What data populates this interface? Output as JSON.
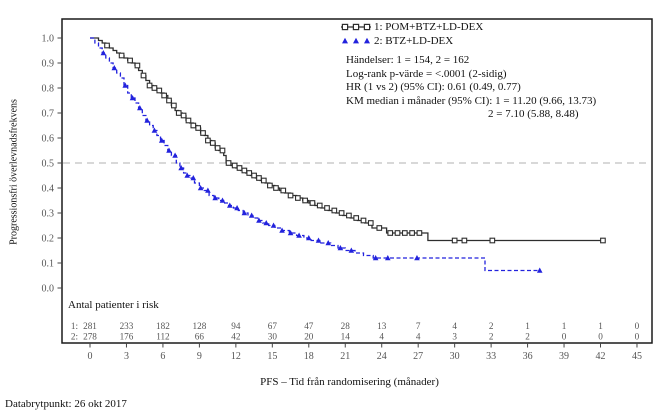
{
  "page": {
    "footer": "Databrytpunkt: 26 okt 2017"
  },
  "legend": {
    "entries": [
      {
        "label": "1: POM+BTZ+LD-DEX",
        "marker": "open-square-icon",
        "color": "#2e2e2e"
      },
      {
        "label": "2: BTZ+LD-DEX",
        "marker": "filled-triangle-icon",
        "color": "#2222dd"
      }
    ]
  },
  "stats": {
    "line1": "Händelser: 1 = 154, 2 = 162",
    "line2": "Log-rank p-värde = <.0001 (2-sidig)",
    "line3": "HR (1 vs 2) (95% CI): 0.61 (0.49, 0.77)",
    "line4": "KM median i månader (95% CI): 1 = 11.20 (9.66, 13.73)",
    "line5": "2 = 7.10 (5.88, 8.48)"
  },
  "risk_table": {
    "title": "Antal patienter i risk",
    "time_points": [
      0,
      3,
      6,
      9,
      12,
      15,
      18,
      21,
      24,
      27,
      30,
      33,
      36,
      39,
      42,
      45
    ],
    "rows": [
      {
        "label": "1:",
        "counts": [
          281,
          233,
          182,
          128,
          94,
          67,
          47,
          28,
          13,
          7,
          4,
          2,
          1,
          1,
          1,
          0
        ]
      },
      {
        "label": "2:",
        "counts": [
          278,
          176,
          112,
          66,
          42,
          30,
          20,
          14,
          4,
          4,
          3,
          2,
          2,
          0,
          0,
          0
        ]
      }
    ]
  },
  "chart_data": {
    "type": "line",
    "subtype": "kaplan-meier-step",
    "title": "",
    "xlabel": "PFS – Tid från randomisering (månader)",
    "ylabel": "Progressionsfri överlevnadsfrekvens",
    "xlim": [
      0,
      45
    ],
    "ylim": [
      0.0,
      1.0
    ],
    "xticks": [
      0,
      3,
      6,
      9,
      12,
      15,
      18,
      21,
      24,
      27,
      30,
      33,
      36,
      39,
      42,
      45
    ],
    "yticks": [
      "0.0",
      "0.1",
      "0.2",
      "0.3",
      "0.4",
      "0.5",
      "0.6",
      "0.7",
      "0.8",
      "0.9",
      "1.0"
    ],
    "reference_line_y": 0.5,
    "reference_line_color": "#b0b0b0",
    "grid": false,
    "legend_position": "top-right-inside",
    "series": [
      {
        "name": "1: POM+BTZ+LD-DEX",
        "color": "#2e2e2e",
        "line_style": "solid",
        "marker": "open-square",
        "median_months": 11.2,
        "steps": [
          [
            0,
            1.0
          ],
          [
            0.7,
            0.99
          ],
          [
            1.0,
            0.98
          ],
          [
            1.3,
            0.97
          ],
          [
            1.6,
            0.96
          ],
          [
            1.9,
            0.95
          ],
          [
            2.2,
            0.94
          ],
          [
            2.5,
            0.93
          ],
          [
            2.8,
            0.92
          ],
          [
            3.1,
            0.91
          ],
          [
            3.4,
            0.9
          ],
          [
            3.7,
            0.89
          ],
          [
            4.0,
            0.87
          ],
          [
            4.3,
            0.85
          ],
          [
            4.6,
            0.83
          ],
          [
            4.9,
            0.81
          ],
          [
            5.2,
            0.8
          ],
          [
            5.5,
            0.79
          ],
          [
            5.8,
            0.78
          ],
          [
            6.1,
            0.77
          ],
          [
            6.4,
            0.75
          ],
          [
            6.7,
            0.73
          ],
          [
            7.0,
            0.71
          ],
          [
            7.3,
            0.7
          ],
          [
            7.6,
            0.69
          ],
          [
            7.9,
            0.67
          ],
          [
            8.2,
            0.66
          ],
          [
            8.5,
            0.65
          ],
          [
            8.8,
            0.64
          ],
          [
            9.1,
            0.62
          ],
          [
            9.4,
            0.61
          ],
          [
            9.7,
            0.59
          ],
          [
            10.0,
            0.58
          ],
          [
            10.3,
            0.56
          ],
          [
            10.6,
            0.55
          ],
          [
            11.0,
            0.53
          ],
          [
            11.2,
            0.5
          ],
          [
            11.6,
            0.49
          ],
          [
            12.0,
            0.48
          ],
          [
            12.4,
            0.47
          ],
          [
            12.8,
            0.46
          ],
          [
            13.2,
            0.45
          ],
          [
            13.6,
            0.44
          ],
          [
            14.0,
            0.43
          ],
          [
            14.4,
            0.42
          ],
          [
            14.8,
            0.41
          ],
          [
            15.2,
            0.4
          ],
          [
            15.6,
            0.39
          ],
          [
            16.0,
            0.38
          ],
          [
            16.5,
            0.37
          ],
          [
            17.0,
            0.36
          ],
          [
            17.5,
            0.35
          ],
          [
            18.0,
            0.34
          ],
          [
            18.5,
            0.33
          ],
          [
            19.0,
            0.32
          ],
          [
            19.6,
            0.31
          ],
          [
            20.2,
            0.3
          ],
          [
            20.8,
            0.29
          ],
          [
            21.4,
            0.28
          ],
          [
            22.0,
            0.27
          ],
          [
            22.6,
            0.26
          ],
          [
            23.2,
            0.24
          ],
          [
            24.4,
            0.22
          ],
          [
            27.8,
            0.19
          ]
        ],
        "end_time": 42.2,
        "censor_times": [
          1.4,
          2.6,
          3.3,
          3.9,
          4.4,
          4.9,
          5.3,
          5.7,
          6.1,
          6.5,
          6.9,
          7.3,
          7.7,
          8.1,
          8.5,
          8.9,
          9.3,
          9.7,
          10.1,
          10.5,
          10.9,
          11.4,
          11.9,
          12.3,
          12.7,
          13.1,
          13.5,
          13.9,
          14.3,
          14.8,
          15.3,
          15.9,
          16.5,
          17.1,
          17.7,
          18.3,
          18.9,
          19.5,
          20.1,
          20.7,
          21.3,
          21.9,
          22.5,
          23.1,
          23.8,
          24.7,
          25.3,
          25.9,
          26.5,
          27.1,
          30.0,
          30.8,
          33.1,
          42.2
        ]
      },
      {
        "name": "2: BTZ+LD-DEX",
        "color": "#2222dd",
        "line_style": "dashed",
        "marker": "filled-triangle",
        "median_months": 7.1,
        "steps": [
          [
            0,
            1.0
          ],
          [
            0.4,
            0.98
          ],
          [
            0.7,
            0.96
          ],
          [
            1.0,
            0.94
          ],
          [
            1.3,
            0.92
          ],
          [
            1.6,
            0.9
          ],
          [
            1.9,
            0.88
          ],
          [
            2.2,
            0.86
          ],
          [
            2.5,
            0.84
          ],
          [
            2.8,
            0.81
          ],
          [
            3.1,
            0.78
          ],
          [
            3.4,
            0.76
          ],
          [
            3.7,
            0.74
          ],
          [
            4.0,
            0.72
          ],
          [
            4.3,
            0.69
          ],
          [
            4.6,
            0.67
          ],
          [
            4.9,
            0.65
          ],
          [
            5.2,
            0.63
          ],
          [
            5.5,
            0.61
          ],
          [
            5.8,
            0.59
          ],
          [
            6.1,
            0.57
          ],
          [
            6.4,
            0.55
          ],
          [
            6.7,
            0.53
          ],
          [
            7.1,
            0.5
          ],
          [
            7.4,
            0.48
          ],
          [
            7.7,
            0.46
          ],
          [
            8.0,
            0.45
          ],
          [
            8.3,
            0.44
          ],
          [
            8.6,
            0.42
          ],
          [
            9.0,
            0.4
          ],
          [
            9.4,
            0.39
          ],
          [
            9.8,
            0.37
          ],
          [
            10.2,
            0.36
          ],
          [
            10.6,
            0.35
          ],
          [
            11.0,
            0.34
          ],
          [
            11.4,
            0.33
          ],
          [
            11.8,
            0.32
          ],
          [
            12.2,
            0.31
          ],
          [
            12.6,
            0.3
          ],
          [
            13.0,
            0.29
          ],
          [
            13.4,
            0.28
          ],
          [
            13.8,
            0.27
          ],
          [
            14.2,
            0.26
          ],
          [
            14.7,
            0.25
          ],
          [
            15.2,
            0.24
          ],
          [
            15.8,
            0.23
          ],
          [
            16.4,
            0.22
          ],
          [
            17.0,
            0.21
          ],
          [
            17.6,
            0.2
          ],
          [
            18.2,
            0.19
          ],
          [
            19.0,
            0.18
          ],
          [
            19.8,
            0.17
          ],
          [
            20.4,
            0.16
          ],
          [
            21.0,
            0.15
          ],
          [
            21.8,
            0.14
          ],
          [
            22.5,
            0.13
          ],
          [
            23.3,
            0.12
          ],
          [
            32.5,
            0.07
          ]
        ],
        "end_time": 37.0,
        "censor_times": [
          1.1,
          2.0,
          2.9,
          3.5,
          4.1,
          4.7,
          5.3,
          5.9,
          6.5,
          7.0,
          7.5,
          8.0,
          8.5,
          9.1,
          9.7,
          10.3,
          10.9,
          11.5,
          12.1,
          12.7,
          13.3,
          13.9,
          14.5,
          15.1,
          15.8,
          16.5,
          17.2,
          18.0,
          18.8,
          19.6,
          20.6,
          21.5,
          23.5,
          24.5,
          26.9,
          37.0
        ]
      }
    ]
  }
}
